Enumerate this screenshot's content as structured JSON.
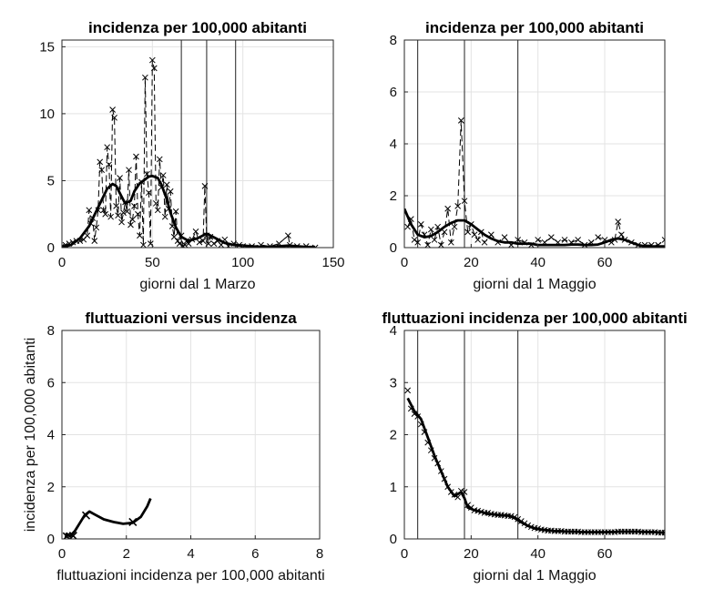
{
  "chart_data": [
    {
      "type": "line",
      "title": "incidenza per 100,000 abitanti",
      "xlabel": "giorni dal 1 Marzo",
      "ylabel": "",
      "xlim": [
        0,
        150
      ],
      "ylim": [
        0,
        15.5
      ],
      "xticks": [
        0,
        50,
        100,
        150
      ],
      "yticks": [
        0,
        5,
        10,
        15
      ],
      "grid": true,
      "vlines": [
        66,
        80,
        96
      ],
      "series": [
        {
          "style": "dashed-markers",
          "x": [
            0,
            2,
            4,
            6,
            8,
            10,
            12,
            14,
            15,
            16,
            17,
            18,
            19,
            20,
            21,
            22,
            23,
            24,
            25,
            26,
            27,
            28,
            29,
            30,
            31,
            32,
            33,
            34,
            35,
            36,
            37,
            38,
            39,
            40,
            41,
            42,
            43,
            44,
            45,
            46,
            47,
            48,
            49,
            50,
            51,
            52,
            53,
            54,
            55,
            56,
            57,
            58,
            59,
            60,
            61,
            62,
            63,
            64,
            65,
            66,
            67,
            68,
            69,
            70,
            72,
            74,
            76,
            78,
            79,
            80,
            81,
            82,
            84,
            86,
            88,
            90,
            92,
            95,
            98,
            100,
            105,
            110,
            115,
            120,
            125,
            126,
            130,
            135,
            140
          ],
          "y": [
            0.1,
            0.2,
            0.3,
            0.4,
            0.5,
            0.5,
            0.6,
            0.9,
            2.8,
            1.8,
            2.2,
            0.5,
            1.5,
            2.8,
            6.4,
            5.8,
            2.8,
            2.5,
            7.5,
            6.2,
            2.3,
            10.3,
            9.7,
            3.1,
            2.4,
            5.2,
            1.9,
            2.6,
            3.4,
            2.7,
            5.8,
            1.7,
            2.1,
            3.1,
            6.8,
            2.5,
            0.9,
            4.9,
            0.2,
            12.7,
            5.5,
            4.1,
            0.3,
            14.0,
            13.4,
            3.3,
            2.8,
            6.6,
            4.5,
            5.4,
            2.3,
            4.7,
            2.9,
            4.2,
            1.6,
            0.8,
            2.7,
            0.5,
            0.3,
            0.9,
            0.1,
            0.2,
            0.5,
            0.3,
            0.6,
            1.2,
            0.4,
            0.5,
            4.6,
            0.9,
            0.3,
            0.8,
            0.3,
            0.5,
            0.2,
            0.6,
            0.1,
            0.3,
            0.2,
            0.1,
            0.1,
            0.2,
            0.1,
            0.3,
            0.9,
            0.2,
            0.1,
            0.1,
            0.0
          ]
        },
        {
          "style": "solid-bold",
          "x": [
            0,
            5,
            10,
            15,
            20,
            25,
            28,
            30,
            33,
            35,
            38,
            40,
            43,
            45,
            48,
            50,
            53,
            55,
            58,
            60,
            63,
            66,
            70,
            75,
            80,
            85,
            90,
            95,
            100,
            105,
            110,
            115,
            120,
            125,
            130,
            135,
            140
          ],
          "y": [
            0.05,
            0.2,
            0.7,
            1.6,
            3.0,
            4.4,
            4.75,
            4.6,
            3.8,
            3.3,
            3.5,
            4.2,
            4.8,
            5.0,
            5.3,
            5.35,
            5.2,
            4.7,
            3.6,
            2.6,
            1.5,
            0.8,
            0.5,
            0.7,
            1.05,
            0.7,
            0.35,
            0.2,
            0.15,
            0.1,
            0.05,
            0.05,
            0.1,
            0.15,
            0.1,
            0.05,
            0.05
          ]
        }
      ]
    },
    {
      "type": "line",
      "title": "incidenza per 100,000 abitanti",
      "xlabel": "giorni dal 1 Maggio",
      "ylabel": "",
      "xlim": [
        0,
        78
      ],
      "ylim": [
        0,
        8
      ],
      "xticks": [
        0,
        20,
        40,
        60
      ],
      "yticks": [
        0,
        2,
        4,
        6,
        8
      ],
      "grid": true,
      "vlines": [
        4,
        18,
        34
      ],
      "series": [
        {
          "style": "dashed-markers",
          "x": [
            1,
            2,
            3,
            4,
            5,
            6,
            7,
            8,
            9,
            10,
            11,
            12,
            13,
            14,
            15,
            16,
            17,
            18,
            19,
            20,
            21,
            22,
            23,
            24,
            26,
            28,
            30,
            32,
            34,
            36,
            38,
            40,
            42,
            44,
            46,
            48,
            50,
            52,
            54,
            56,
            58,
            60,
            62,
            63,
            64,
            65,
            66,
            68,
            70,
            72,
            74,
            76,
            78
          ],
          "y": [
            0.8,
            1.1,
            0.3,
            0.2,
            0.9,
            0.5,
            0.1,
            0.7,
            0.3,
            0.8,
            0.1,
            0.6,
            1.5,
            0.2,
            0.8,
            1.6,
            4.9,
            1.8,
            0.6,
            0.9,
            0.5,
            0.3,
            0.6,
            0.2,
            0.5,
            0.2,
            0.4,
            0.1,
            0.3,
            0.2,
            0.1,
            0.3,
            0.2,
            0.4,
            0.2,
            0.3,
            0.2,
            0.3,
            0.1,
            0.2,
            0.4,
            0.3,
            0.2,
            0.3,
            1.0,
            0.5,
            0.3,
            0.2,
            0.1,
            0.1,
            0.1,
            0.1,
            0.3
          ]
        },
        {
          "style": "solid-bold",
          "x": [
            0,
            2,
            4,
            6,
            8,
            10,
            12,
            14,
            16,
            18,
            20,
            22,
            24,
            26,
            28,
            30,
            32,
            34,
            36,
            38,
            40,
            42,
            44,
            46,
            48,
            50,
            52,
            54,
            56,
            58,
            60,
            62,
            64,
            66,
            68,
            70,
            72,
            74,
            76,
            78
          ],
          "y": [
            1.5,
            0.9,
            0.5,
            0.4,
            0.45,
            0.6,
            0.8,
            0.95,
            1.05,
            1.05,
            0.9,
            0.7,
            0.5,
            0.35,
            0.25,
            0.2,
            0.2,
            0.15,
            0.15,
            0.15,
            0.1,
            0.1,
            0.1,
            0.1,
            0.1,
            0.12,
            0.12,
            0.1,
            0.1,
            0.12,
            0.2,
            0.3,
            0.35,
            0.3,
            0.2,
            0.1,
            0.05,
            0.05,
            0.05,
            0.05
          ]
        }
      ]
    },
    {
      "type": "line",
      "title": "fluttuazioni versus incidenza",
      "xlabel": "fluttuazioni incidenza per 100,000 abitanti",
      "ylabel": "incidenza per 100,000 abitanti",
      "xlim": [
        0,
        8
      ],
      "ylim": [
        0,
        8
      ],
      "xticks": [
        0,
        2,
        4,
        6,
        8
      ],
      "yticks": [
        0,
        2,
        4,
        6,
        8
      ],
      "grid": true,
      "series": [
        {
          "style": "solid-bold",
          "x": [
            0.12,
            0.15,
            0.25,
            0.4,
            0.55,
            0.7,
            0.85,
            1.0,
            1.3,
            1.6,
            1.9,
            2.2,
            2.45,
            2.65,
            2.75
          ],
          "y": [
            0.05,
            0.2,
            0.1,
            0.3,
            0.6,
            0.9,
            1.05,
            0.95,
            0.75,
            0.65,
            0.58,
            0.62,
            0.85,
            1.25,
            1.55
          ]
        },
        {
          "style": "markers",
          "x": [
            0.15,
            0.35,
            0.75,
            2.2
          ],
          "y": [
            0.1,
            0.12,
            0.9,
            0.65
          ]
        }
      ]
    },
    {
      "type": "line",
      "title": "fluttuazioni incidenza per 100,000 abitanti",
      "xlabel": "giorni dal 1 Maggio",
      "ylabel": "",
      "xlim": [
        0,
        78
      ],
      "ylim": [
        0,
        4
      ],
      "xticks": [
        0,
        20,
        40,
        60
      ],
      "yticks": [
        0,
        1,
        2,
        3,
        4
      ],
      "grid": true,
      "vlines": [
        4,
        18,
        34
      ],
      "series": [
        {
          "style": "solid-bold",
          "x": [
            1,
            3,
            5,
            7,
            9,
            11,
            13,
            15,
            17,
            18,
            19,
            21,
            23,
            25,
            27,
            29,
            31,
            33,
            35,
            37,
            39,
            41,
            45,
            50,
            55,
            60,
            65,
            70,
            75,
            78
          ],
          "y": [
            2.7,
            2.45,
            2.3,
            1.95,
            1.6,
            1.3,
            1.0,
            0.82,
            0.9,
            0.78,
            0.6,
            0.55,
            0.52,
            0.48,
            0.47,
            0.45,
            0.45,
            0.4,
            0.32,
            0.25,
            0.2,
            0.18,
            0.15,
            0.14,
            0.13,
            0.13,
            0.14,
            0.14,
            0.13,
            0.12
          ]
        },
        {
          "style": "markers",
          "x": [
            1,
            2,
            3,
            4,
            5,
            6,
            7,
            8,
            9,
            10,
            11,
            12,
            13,
            14,
            15,
            16,
            17,
            18,
            19,
            20,
            21,
            22,
            23,
            24,
            25,
            26,
            27,
            28,
            29,
            30,
            31,
            32,
            33,
            34,
            35,
            36,
            37,
            38,
            39,
            40,
            41,
            42,
            43,
            44,
            45,
            46,
            47,
            48,
            49,
            50,
            51,
            52,
            53,
            54,
            55,
            56,
            57,
            58,
            59,
            60,
            61,
            62,
            63,
            64,
            65,
            66,
            67,
            68,
            69,
            70,
            71,
            72,
            73,
            74,
            75,
            76,
            77,
            78
          ],
          "y": [
            2.85,
            2.5,
            2.4,
            2.35,
            2.2,
            2.05,
            1.85,
            1.7,
            1.55,
            1.45,
            1.3,
            1.15,
            1.0,
            0.9,
            0.85,
            0.8,
            0.92,
            0.9,
            0.65,
            0.6,
            0.55,
            0.54,
            0.52,
            0.5,
            0.5,
            0.48,
            0.47,
            0.46,
            0.46,
            0.45,
            0.44,
            0.44,
            0.42,
            0.38,
            0.34,
            0.3,
            0.26,
            0.23,
            0.21,
            0.2,
            0.18,
            0.17,
            0.16,
            0.16,
            0.15,
            0.15,
            0.15,
            0.14,
            0.14,
            0.14,
            0.14,
            0.14,
            0.13,
            0.13,
            0.13,
            0.13,
            0.13,
            0.13,
            0.13,
            0.13,
            0.13,
            0.13,
            0.13,
            0.14,
            0.14,
            0.14,
            0.14,
            0.14,
            0.14,
            0.14,
            0.13,
            0.13,
            0.13,
            0.13,
            0.13,
            0.12,
            0.12,
            0.12
          ]
        }
      ]
    }
  ]
}
